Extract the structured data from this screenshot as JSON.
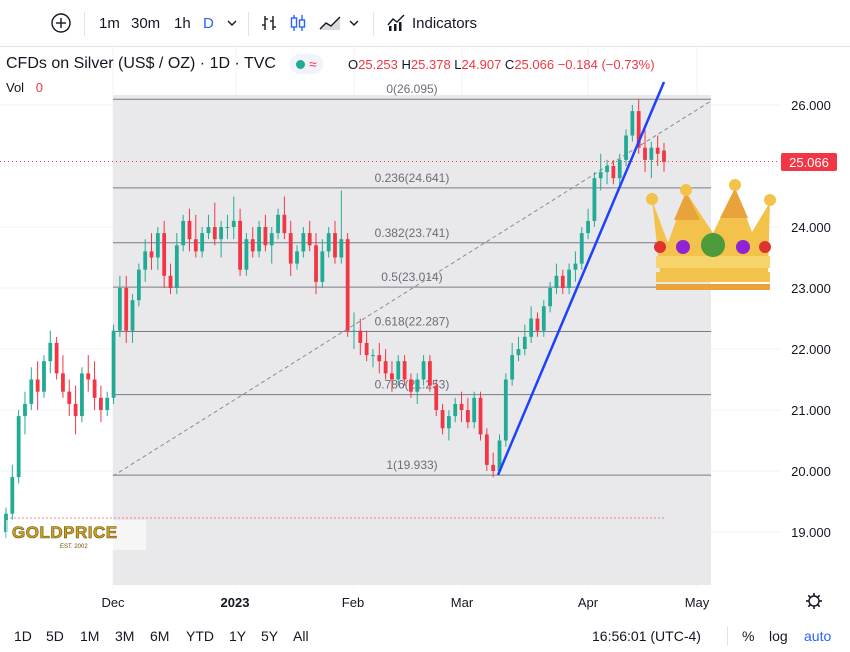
{
  "toolbar": {
    "intervals": [
      "1m",
      "30m",
      "1h",
      "D"
    ],
    "indicators_label": "Indicators"
  },
  "legend": {
    "title": "CFDs on Silver (US$ / OZ) · 1D · TVC",
    "ohlc": [
      {
        "label": "O",
        "value": "25.253"
      },
      {
        "label": "H",
        "value": "25.378"
      },
      {
        "label": "L",
        "value": "24.907"
      },
      {
        "label": "C",
        "value": "25.066"
      }
    ],
    "change": "−0.184 (−0.73%)",
    "vol_label": "Vol",
    "vol_value": "0"
  },
  "bottombar": {
    "ranges": [
      "1D",
      "5D",
      "1M",
      "3M",
      "6M",
      "YTD",
      "1Y",
      "5Y",
      "All"
    ],
    "time": "16:56:01 (UTC-4)",
    "percent": "%",
    "log": "log",
    "auto": "auto"
  },
  "logo_text": "GOLDPRICE",
  "logo_sub": "EST. 2002",
  "colors": {
    "up": "#22ab94",
    "down": "#f23645",
    "trend": "#1e40ff",
    "accent": "#2962ff"
  },
  "chart_data": {
    "type": "candlestick",
    "yticks": [
      "26.000",
      "25.000",
      "24.000",
      "23.000",
      "22.000",
      "21.000",
      "20.000",
      "19.000"
    ],
    "ylim": [
      18.0,
      26.8
    ],
    "xticks": [
      "Dec",
      "2023",
      "Feb",
      "Mar",
      "Apr",
      "May"
    ],
    "last_price": "25.066",
    "fib_levels": [
      {
        "label": "0(26.095)",
        "value": 26.095
      },
      {
        "label": "0.236(24.641)",
        "value": 24.641
      },
      {
        "label": "0.382(23.741)",
        "value": 23.741
      },
      {
        "label": "0.5(23.014)",
        "value": 23.014
      },
      {
        "label": "0.618(22.287)",
        "value": 22.287
      },
      {
        "label": "0.786(21.253)",
        "value": 21.253
      },
      {
        "label": "1(19.933)",
        "value": 19.933
      }
    ],
    "candles": [
      [
        19.0,
        19.4,
        18.9,
        19.3
      ],
      [
        19.3,
        20.1,
        19.2,
        19.9
      ],
      [
        19.9,
        21.0,
        19.8,
        20.9
      ],
      [
        20.9,
        21.3,
        20.6,
        21.1
      ],
      [
        21.1,
        21.7,
        21.0,
        21.5
      ],
      [
        21.5,
        21.8,
        21.0,
        21.3
      ],
      [
        21.3,
        21.9,
        21.2,
        21.8
      ],
      [
        21.8,
        22.3,
        21.6,
        22.1
      ],
      [
        22.1,
        22.2,
        21.5,
        21.6
      ],
      [
        21.6,
        21.9,
        21.2,
        21.3
      ],
      [
        21.3,
        21.5,
        20.9,
        21.1
      ],
      [
        21.1,
        21.4,
        20.6,
        20.9
      ],
      [
        20.9,
        21.7,
        20.8,
        21.6
      ],
      [
        21.6,
        21.9,
        21.3,
        21.5
      ],
      [
        21.5,
        21.8,
        21.0,
        21.2
      ],
      [
        21.2,
        21.4,
        20.8,
        21.0
      ],
      [
        21.0,
        21.3,
        20.9,
        21.2
      ],
      [
        21.2,
        22.4,
        21.1,
        22.3
      ],
      [
        22.3,
        23.2,
        22.2,
        23.0
      ],
      [
        23.0,
        23.2,
        22.1,
        22.3
      ],
      [
        22.3,
        22.9,
        22.1,
        22.8
      ],
      [
        22.8,
        23.4,
        22.7,
        23.3
      ],
      [
        23.3,
        23.8,
        23.1,
        23.6
      ],
      [
        23.6,
        23.9,
        23.3,
        23.5
      ],
      [
        23.5,
        24.0,
        23.3,
        23.9
      ],
      [
        23.9,
        24.1,
        23.0,
        23.2
      ],
      [
        23.2,
        23.4,
        22.9,
        23.0
      ],
      [
        23.0,
        23.9,
        22.9,
        23.7
      ],
      [
        23.7,
        24.2,
        23.6,
        24.1
      ],
      [
        24.1,
        24.3,
        23.6,
        23.8
      ],
      [
        23.8,
        24.2,
        23.5,
        23.6
      ],
      [
        23.6,
        24.0,
        23.5,
        23.9
      ],
      [
        23.9,
        24.2,
        23.8,
        24.0
      ],
      [
        24.0,
        24.4,
        23.7,
        23.8
      ],
      [
        23.8,
        24.1,
        23.5,
        24.0
      ],
      [
        24.0,
        24.2,
        23.8,
        24.0
      ],
      [
        24.0,
        24.5,
        23.8,
        24.1
      ],
      [
        24.1,
        24.3,
        23.2,
        23.3
      ],
      [
        23.3,
        23.9,
        23.2,
        23.8
      ],
      [
        23.8,
        24.0,
        23.5,
        23.6
      ],
      [
        23.6,
        24.1,
        23.5,
        24.0
      ],
      [
        24.0,
        24.2,
        23.6,
        23.7
      ],
      [
        23.7,
        24.0,
        23.4,
        23.9
      ],
      [
        23.9,
        24.3,
        23.8,
        24.2
      ],
      [
        24.2,
        24.5,
        23.8,
        23.9
      ],
      [
        23.9,
        24.1,
        23.2,
        23.4
      ],
      [
        23.4,
        23.7,
        23.3,
        23.6
      ],
      [
        23.6,
        24.0,
        23.5,
        23.9
      ],
      [
        23.9,
        24.1,
        23.6,
        23.7
      ],
      [
        23.7,
        23.9,
        22.9,
        23.1
      ],
      [
        23.1,
        23.8,
        23.0,
        23.6
      ],
      [
        23.6,
        24.0,
        23.5,
        23.9
      ],
      [
        23.9,
        24.1,
        23.4,
        23.5
      ],
      [
        23.5,
        24.6,
        23.4,
        23.8
      ],
      [
        23.8,
        23.9,
        22.2,
        22.3
      ],
      [
        22.3,
        22.6,
        22.0,
        22.3
      ],
      [
        22.3,
        22.5,
        21.9,
        22.1
      ],
      [
        22.1,
        22.3,
        21.8,
        21.9
      ],
      [
        21.9,
        22.0,
        21.7,
        21.9
      ],
      [
        21.9,
        22.1,
        21.6,
        21.8
      ],
      [
        21.8,
        22.0,
        21.5,
        21.6
      ],
      [
        21.6,
        21.8,
        21.3,
        21.5
      ],
      [
        21.5,
        21.9,
        21.4,
        21.8
      ],
      [
        21.8,
        21.9,
        21.4,
        21.5
      ],
      [
        21.5,
        21.6,
        21.2,
        21.3
      ],
      [
        21.3,
        21.6,
        21.1,
        21.5
      ],
      [
        21.5,
        21.9,
        21.4,
        21.8
      ],
      [
        21.8,
        21.9,
        21.3,
        21.4
      ],
      [
        21.4,
        21.5,
        20.9,
        21.0
      ],
      [
        21.0,
        21.1,
        20.6,
        20.7
      ],
      [
        20.7,
        21.0,
        20.5,
        20.9
      ],
      [
        20.9,
        21.2,
        20.8,
        21.1
      ],
      [
        21.1,
        21.3,
        20.8,
        21.0
      ],
      [
        21.0,
        21.2,
        20.7,
        20.8
      ],
      [
        20.8,
        21.3,
        20.7,
        21.2
      ],
      [
        21.2,
        21.3,
        20.5,
        20.6
      ],
      [
        20.6,
        20.7,
        20.0,
        20.1
      ],
      [
        20.1,
        20.3,
        19.9,
        20.0
      ],
      [
        20.0,
        20.6,
        19.95,
        20.5
      ],
      [
        20.5,
        21.6,
        20.4,
        21.5
      ],
      [
        21.5,
        22.1,
        21.4,
        21.9
      ],
      [
        21.9,
        22.2,
        21.8,
        22.0
      ],
      [
        22.0,
        22.4,
        21.9,
        22.2
      ],
      [
        22.2,
        22.7,
        22.1,
        22.5
      ],
      [
        22.5,
        22.6,
        22.2,
        22.3
      ],
      [
        22.3,
        22.8,
        22.2,
        22.7
      ],
      [
        22.7,
        23.1,
        22.6,
        23.0
      ],
      [
        23.0,
        23.4,
        22.9,
        23.2
      ],
      [
        23.2,
        23.3,
        22.9,
        23.0
      ],
      [
        23.0,
        23.4,
        22.9,
        23.3
      ],
      [
        23.3,
        23.6,
        23.1,
        23.4
      ],
      [
        23.4,
        24.0,
        23.3,
        23.9
      ],
      [
        23.9,
        24.3,
        23.8,
        24.1
      ],
      [
        24.1,
        24.9,
        24.0,
        24.8
      ],
      [
        24.8,
        25.2,
        24.6,
        24.9
      ],
      [
        24.9,
        25.1,
        24.7,
        25.0
      ],
      [
        25.0,
        25.1,
        24.7,
        24.8
      ],
      [
        24.8,
        25.2,
        24.7,
        25.1
      ],
      [
        25.1,
        25.6,
        25.0,
        25.5
      ],
      [
        25.5,
        26.0,
        25.4,
        25.9
      ],
      [
        25.9,
        26.1,
        25.2,
        25.3
      ],
      [
        25.3,
        25.6,
        24.9,
        25.1
      ],
      [
        25.1,
        25.4,
        24.8,
        25.3
      ],
      [
        25.3,
        25.5,
        25.0,
        25.2
      ],
      [
        25.253,
        25.378,
        24.907,
        25.066
      ]
    ]
  }
}
